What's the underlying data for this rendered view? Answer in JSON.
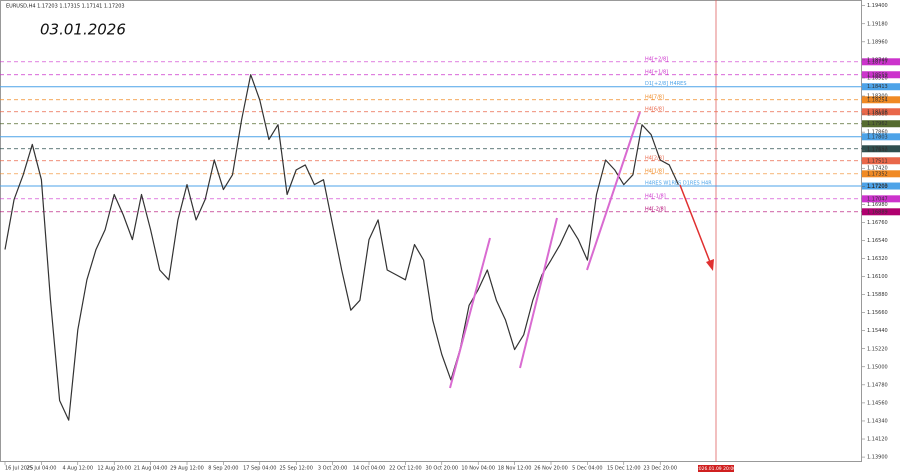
{
  "chart_data": {
    "type": "line",
    "header": "EURUSD,H4  1.17203 1.17315 1.17141 1.17203",
    "annotation": "03.01.2026",
    "time_marker_label": "2026.01.09 20:00",
    "categories": [
      "16 Jul 2025",
      null,
      null,
      null,
      "25 Jul 04:00",
      null,
      null,
      null,
      "4 Aug 12:00",
      null,
      null,
      null,
      "12 Aug 20:00",
      null,
      null,
      null,
      "21 Aug 04:00",
      null,
      null,
      null,
      "29 Aug 12:00",
      null,
      null,
      null,
      "8 Sep 20:00",
      null,
      null,
      null,
      "17 Sep 04:00",
      null,
      null,
      null,
      "25 Sep 12:00",
      null,
      null,
      null,
      "3 Oct 20:00",
      null,
      null,
      null,
      "14 Oct 04:00",
      null,
      null,
      null,
      "22 Oct 12:00",
      null,
      null,
      null,
      "30 Oct 20:00",
      null,
      null,
      null,
      "10 Nov 04:00",
      null,
      null,
      null,
      "18 Nov 12:00",
      null,
      null,
      null,
      "26 Nov 20:00",
      null,
      null,
      null,
      "5 Dec 04:00",
      null,
      null,
      null,
      "15 Dec 12:00",
      null,
      null,
      null,
      "23 Dec 20:00",
      null,
      null,
      null
    ],
    "series": [
      {
        "name": "EURUSD,H4",
        "color": "#333333",
        "values": [
          1.1643,
          1.1704,
          1.1734,
          1.1771,
          1.1728,
          1.1581,
          1.1459,
          1.1435,
          1.1545,
          1.1606,
          1.1643,
          1.1667,
          1.171,
          1.1685,
          1.1655,
          1.171,
          1.1667,
          1.1618,
          1.1606,
          1.1679,
          1.1722,
          1.1679,
          1.1704,
          1.1752,
          1.1716,
          1.1734,
          1.1801,
          1.1856,
          1.1825,
          1.1777,
          1.1795,
          1.171,
          1.174,
          1.1746,
          1.1722,
          1.1728,
          1.1673,
          1.1618,
          1.1569,
          1.1581,
          1.1655,
          1.1679,
          1.1618,
          1.1612,
          1.1606,
          1.1649,
          1.163,
          1.1557,
          1.1515,
          1.1484,
          1.1521,
          1.1575,
          1.1594,
          1.1618,
          1.1581,
          1.1557,
          1.1521,
          1.1539,
          1.1581,
          1.1612,
          1.163,
          1.1649,
          1.1673,
          1.1655,
          1.163,
          1.171,
          1.1752,
          1.174,
          1.1722,
          1.1734,
          1.1795,
          1.1783,
          1.1752,
          1.1746,
          1.1722,
          null
        ]
      }
    ],
    "ylim": [
      1.1384,
      1.1947
    ],
    "yticks": [
      {
        "value": 1.194,
        "label": "1.19400"
      },
      {
        "value": 1.1918,
        "label": "1.19180"
      },
      {
        "value": 1.1896,
        "label": "1.18960"
      },
      {
        "value": 1.1874,
        "label": "1.18740"
      },
      {
        "value": 1.1852,
        "label": "1.18520"
      },
      {
        "value": 1.183,
        "label": "1.18300"
      },
      {
        "value": 1.1808,
        "label": "1.18080"
      },
      {
        "value": 1.1786,
        "label": "1.17860"
      },
      {
        "value": 1.1764,
        "label": "1.17640"
      },
      {
        "value": 1.1742,
        "label": "1.17420"
      },
      {
        "value": 1.172,
        "label": "1.17200"
      },
      {
        "value": 1.1698,
        "label": "1.16980"
      },
      {
        "value": 1.1676,
        "label": "1.16760"
      },
      {
        "value": 1.1654,
        "label": "1.16540"
      },
      {
        "value": 1.1632,
        "label": "1.16320"
      },
      {
        "value": 1.161,
        "label": "1.16100"
      },
      {
        "value": 1.1588,
        "label": "1.15880"
      },
      {
        "value": 1.1566,
        "label": "1.15660"
      },
      {
        "value": 1.1544,
        "label": "1.15440"
      },
      {
        "value": 1.1522,
        "label": "1.15220"
      },
      {
        "value": 1.15,
        "label": "1.15000"
      },
      {
        "value": 1.1478,
        "label": "1.14780"
      },
      {
        "value": 1.1456,
        "label": "1.14560"
      },
      {
        "value": 1.1434,
        "label": "1.14340"
      },
      {
        "value": 1.1412,
        "label": "1.14120"
      },
      {
        "value": 1.139,
        "label": "1.13900"
      }
    ],
    "levels": [
      {
        "label": "H4[+2/8]",
        "price": 1.18717,
        "price_label": "1.18717",
        "color": "#cc33cc",
        "dashed": true
      },
      {
        "label": "H4[+1/8]",
        "price": 1.18559,
        "price_label": "1.18559",
        "color": "#cc33cc",
        "dashed": true
      },
      {
        "label": "D1[+2/8] H4RES",
        "price": 1.18413,
        "price_label": "1.18413",
        "color": "#4da3e8",
        "dashed": false
      },
      {
        "label": "H4[7/8]",
        "price": 1.18254,
        "price_label": "1.18254",
        "color": "#f08a24",
        "dashed": true
      },
      {
        "label": "H4[6/8]",
        "price": 1.18108,
        "price_label": "1.18108",
        "color": "#e9674a",
        "dashed": true
      },
      {
        "price": 1.17962,
        "price_label": "1.17962",
        "color": "#556b2f",
        "dashed": true
      },
      {
        "price": 1.17803,
        "price_label": "1.17803",
        "color": "#4da3e8",
        "dashed": false
      },
      {
        "price": 1.17657,
        "price_label": "1.17657",
        "color": "#2f4f4f",
        "dashed": true
      },
      {
        "label": "H4[2/8]",
        "price": 1.17511,
        "price_label": "1.17511",
        "color": "#e9674a",
        "dashed": true
      },
      {
        "label": "H4[1/8]",
        "price": 1.17352,
        "price_label": "1.17352",
        "color": "#f08a24",
        "dashed": true
      },
      {
        "label": "H4RES W1RES D1RES H4R",
        "price": 1.17203,
        "price_label": "1.17203",
        "color": "#4da3e8",
        "dashed": false
      },
      {
        "label": "H4[-1/8]",
        "price": 1.17047,
        "price_label": "1.17047",
        "color": "#cc33cc",
        "dashed": true
      },
      {
        "label": "H4[-2/8]",
        "price": 1.16889,
        "price_label": "1.16889",
        "color": "#b0006f",
        "dashed": true
      }
    ]
  }
}
